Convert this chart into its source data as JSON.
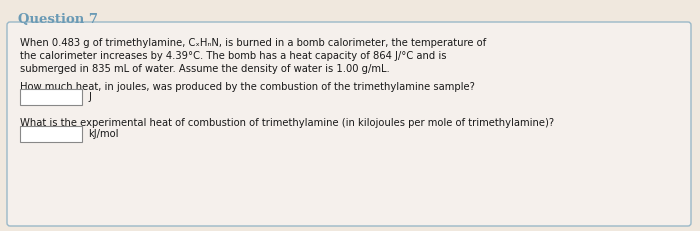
{
  "title": "Question 7",
  "title_color": "#6a9ab5",
  "title_fontsize": 9.5,
  "background_color": "#f0e8de",
  "box_background": "#f5f0ec",
  "box_border_color": "#9ab8c8",
  "line1": "When 0.483 g of trimethylamine, C",
  "line1_sub1": "x",
  "line1_mid": "H",
  "line1_sub2": "y",
  "line1_end": "N, is burned in a bomb calorimeter, the temperature of",
  "line2": "the calorimeter increases by 4.39°C. The bomb has a heat capacity of 864 J/°C and is",
  "line3": "submerged in 835 mL of water. Assume the density of water is 1.00 g/mL.",
  "line4": "How much heat, in joules, was produced by the combustion of the trimethylamine sample?",
  "label_J": "J",
  "line6": "What is the experimental heat of combustion of trimethylamine (in kilojoules per mole of trimethylamine)?",
  "label_kJ": "kJ/mol",
  "text_fontsize": 7.2,
  "text_color": "#1a1a1a"
}
